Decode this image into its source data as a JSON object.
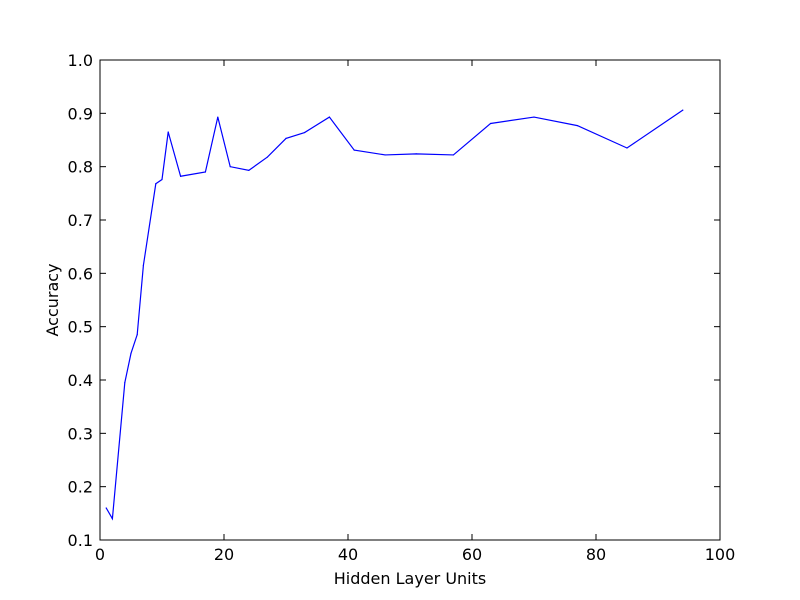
{
  "chart_data": {
    "type": "line",
    "title": "",
    "xlabel": "Hidden Layer Units",
    "ylabel": "Accuracy",
    "xlim": [
      0,
      100
    ],
    "ylim": [
      0.1,
      1.0
    ],
    "xticks": [
      0,
      20,
      40,
      60,
      80,
      100
    ],
    "yticks": [
      0.1,
      0.2,
      0.3,
      0.4,
      0.5,
      0.6,
      0.7,
      0.8,
      0.9,
      1.0
    ],
    "xtick_labels": [
      "0",
      "20",
      "40",
      "60",
      "80",
      "100"
    ],
    "ytick_labels": [
      "0.1",
      "0.2",
      "0.3",
      "0.4",
      "0.5",
      "0.6",
      "0.7",
      "0.8",
      "0.9",
      "1.0"
    ],
    "grid": false,
    "legend": "none",
    "series": [
      {
        "color": "#0000ff",
        "x": [
          1,
          2,
          4,
          5,
          6,
          7,
          9,
          10,
          11,
          13,
          17,
          19,
          21,
          24,
          27,
          30,
          33,
          37,
          41,
          46,
          51,
          57,
          63,
          70,
          77,
          85,
          94
        ],
        "y": [
          0.16,
          0.14,
          0.395,
          0.45,
          0.485,
          0.615,
          0.768,
          0.776,
          0.865,
          0.782,
          0.79,
          0.893,
          0.8,
          0.793,
          0.818,
          0.853,
          0.864,
          0.893,
          0.831,
          0.822,
          0.824,
          0.822,
          0.881,
          0.893,
          0.877,
          0.835,
          0.906
        ]
      }
    ]
  }
}
